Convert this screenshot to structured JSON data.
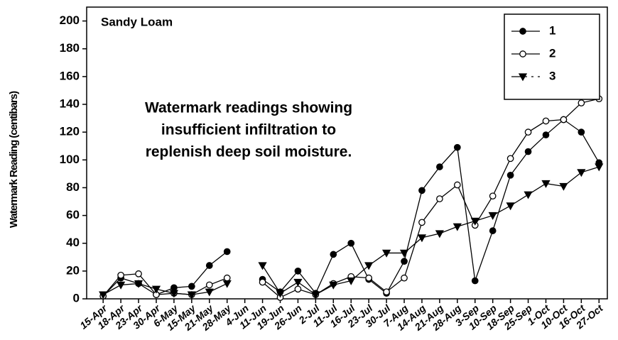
{
  "chart_data": {
    "type": "line",
    "annotations": [
      "Sandy Loam",
      "Watermark readings showing",
      "insufficient infiltration to",
      "replenish deep soil moisture."
    ],
    "ylabel": "Watermark Reading (centibars)",
    "categories": [
      "15-Apr",
      "18-Apr",
      "23-Apr",
      "30-Apr",
      "6-May",
      "15-May",
      "21-May",
      "28-May",
      "4-Jun",
      "11-Jun",
      "19-Jun",
      "26-Jun",
      "2-Jul",
      "11-Jul",
      "16-Jul",
      "23-Jul",
      "30-Jul",
      "7-Aug",
      "14-Aug",
      "21-Aug",
      "28-Aug",
      "3-Sep",
      "10-Sep",
      "18-Sep",
      "25-Sep",
      "1-Oct",
      "10-Oct",
      "16-Oct",
      "27-Oct"
    ],
    "series": [
      {
        "name": "1",
        "color": "#000000",
        "marker": "circle-filled",
        "values": [
          2,
          15,
          11,
          3,
          8,
          9,
          24,
          34,
          null,
          14,
          5,
          20,
          4,
          32,
          40,
          14,
          4,
          27,
          78,
          95,
          109,
          13,
          49,
          89,
          106,
          118,
          129,
          120,
          98
        ]
      },
      {
        "name": "2",
        "color": "#000000",
        "marker": "circle-open",
        "values": [
          2,
          17,
          18,
          3,
          4,
          3,
          10,
          15,
          null,
          12,
          1,
          7,
          3,
          11,
          16,
          15,
          5,
          15,
          55,
          72,
          82,
          53,
          74,
          101,
          120,
          128,
          129,
          141,
          144
        ]
      },
      {
        "name": "3",
        "color": "#000000",
        "marker": "triangle-down",
        "values": [
          3,
          10,
          11,
          7,
          4,
          3,
          5,
          11,
          null,
          24,
          4,
          12,
          3,
          10,
          13,
          24,
          33,
          33,
          44,
          47,
          52,
          56,
          60,
          67,
          75,
          83,
          81,
          91,
          95
        ]
      }
    ],
    "ylim": [
      0,
      210
    ],
    "yticks": [
      0,
      20,
      40,
      60,
      80,
      100,
      120,
      140,
      160,
      180,
      200
    ],
    "legend": "upper right",
    "grid": false
  }
}
